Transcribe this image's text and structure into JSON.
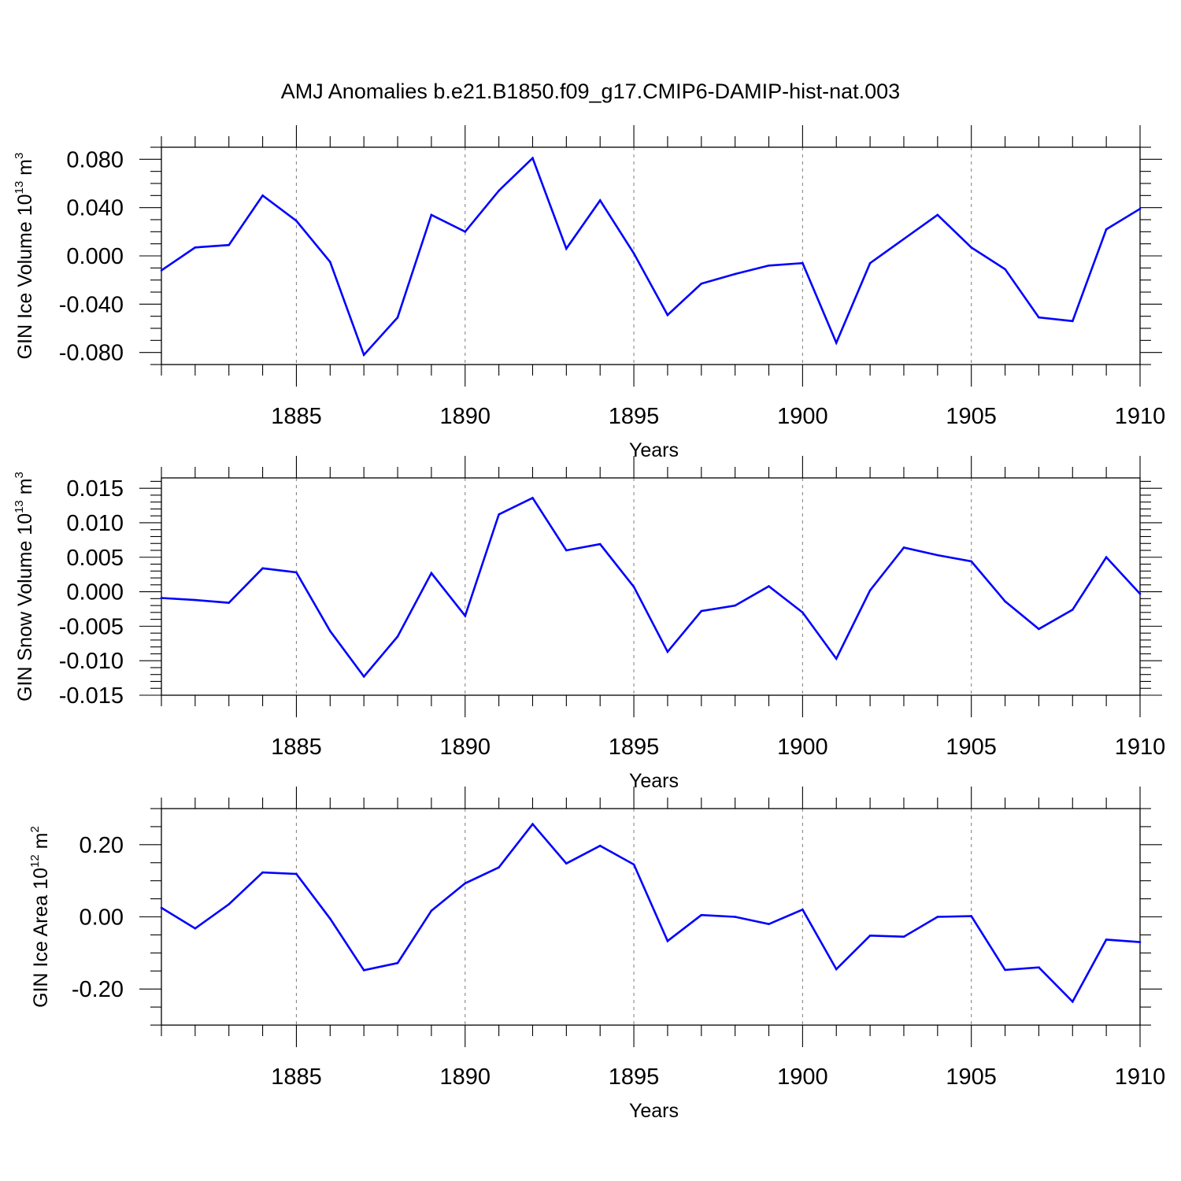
{
  "title": "AMJ Anomalies b.e21.B1850.f09_g17.CMIP6-DAMIP-hist-nat.003",
  "colors": {
    "line": "#0000ff",
    "grid": "#888888",
    "axis": "#000000"
  },
  "chart_data": [
    {
      "type": "line",
      "ylabel": "GIN Ice Volume 10",
      "ylabel_exp": "13",
      "ylabel_unit": " m",
      "ylabel_unit_exp": "3",
      "xlabel": "Years",
      "xlim": [
        1881,
        1910
      ],
      "ylim": [
        -0.09,
        0.09
      ],
      "yticks": [
        -0.08,
        -0.04,
        0.0,
        0.04,
        0.08
      ],
      "ytick_labels": [
        "-0.080",
        "-0.040",
        "0.000",
        "0.040",
        "0.080"
      ],
      "yminor_step": 0.01,
      "xticks": [
        1885,
        1890,
        1895,
        1900,
        1905,
        1910
      ],
      "xtick_labels": [
        "1885",
        "1890",
        "1895",
        "1900",
        "1905",
        "1910"
      ],
      "grid": "vertical dashed at major x ticks",
      "x": [
        1881,
        1882,
        1883,
        1884,
        1885,
        1886,
        1887,
        1888,
        1889,
        1890,
        1891,
        1892,
        1893,
        1894,
        1895,
        1896,
        1897,
        1898,
        1899,
        1900,
        1901,
        1902,
        1903,
        1904,
        1905,
        1906,
        1907,
        1908,
        1909,
        1910
      ],
      "values": [
        -0.012,
        0.007,
        0.009,
        0.05,
        0.029,
        -0.005,
        -0.082,
        -0.051,
        0.034,
        0.02,
        0.054,
        0.081,
        0.006,
        0.046,
        0.002,
        -0.049,
        -0.023,
        -0.015,
        -0.008,
        -0.006,
        -0.072,
        -0.006,
        0.014,
        0.034,
        0.007,
        -0.011,
        -0.051,
        -0.054,
        0.022,
        0.039
      ]
    },
    {
      "type": "line",
      "ylabel": "GIN Snow Volume 10",
      "ylabel_exp": "13",
      "ylabel_unit": " m",
      "ylabel_unit_exp": "3",
      "xlabel": "Years",
      "xlim": [
        1881,
        1910
      ],
      "ylim": [
        -0.015,
        0.0165
      ],
      "yticks": [
        -0.015,
        -0.01,
        -0.005,
        0.0,
        0.005,
        0.01,
        0.015
      ],
      "ytick_labels": [
        "-0.015",
        "-0.010",
        "-0.005",
        "0.000",
        "0.005",
        "0.010",
        "0.015"
      ],
      "yminor_step": 0.001,
      "xticks": [
        1885,
        1890,
        1895,
        1900,
        1905,
        1910
      ],
      "xtick_labels": [
        "1885",
        "1890",
        "1895",
        "1900",
        "1905",
        "1910"
      ],
      "grid": "vertical dashed at major x ticks",
      "x": [
        1881,
        1882,
        1883,
        1884,
        1885,
        1886,
        1887,
        1888,
        1889,
        1890,
        1891,
        1892,
        1893,
        1894,
        1895,
        1896,
        1897,
        1898,
        1899,
        1900,
        1901,
        1902,
        1903,
        1904,
        1905,
        1906,
        1907,
        1908,
        1909,
        1910
      ],
      "values": [
        -0.0009,
        -0.0012,
        -0.0016,
        0.0034,
        0.0028,
        -0.0057,
        -0.0123,
        -0.0065,
        0.0027,
        -0.0035,
        0.0112,
        0.0136,
        0.006,
        0.0069,
        0.0007,
        -0.0087,
        -0.0028,
        -0.002,
        0.0008,
        -0.003,
        -0.0097,
        0.0002,
        0.0064,
        0.0053,
        0.0044,
        -0.0014,
        -0.0054,
        -0.0026,
        0.005,
        -0.0003
      ]
    },
    {
      "type": "line",
      "ylabel": "GIN Ice Area 10",
      "ylabel_exp": "12",
      "ylabel_unit": " m",
      "ylabel_unit_exp": "2",
      "xlabel": "Years",
      "xlim": [
        1881,
        1910
      ],
      "ylim": [
        -0.3,
        0.3
      ],
      "yticks": [
        -0.2,
        0.0,
        0.2
      ],
      "ytick_labels": [
        "-0.20",
        "0.00",
        "0.20"
      ],
      "yminor_step": 0.05,
      "xticks": [
        1885,
        1890,
        1895,
        1900,
        1905,
        1910
      ],
      "xtick_labels": [
        "1885",
        "1890",
        "1895",
        "1900",
        "1905",
        "1910"
      ],
      "grid": "vertical dashed at major x ticks",
      "x": [
        1881,
        1882,
        1883,
        1884,
        1885,
        1886,
        1887,
        1888,
        1889,
        1890,
        1891,
        1892,
        1893,
        1894,
        1895,
        1896,
        1897,
        1898,
        1899,
        1900,
        1901,
        1902,
        1903,
        1904,
        1905,
        1906,
        1907,
        1908,
        1909,
        1910
      ],
      "values": [
        0.025,
        -0.032,
        0.035,
        0.123,
        0.119,
        -0.005,
        -0.148,
        -0.128,
        0.017,
        0.093,
        0.137,
        0.257,
        0.148,
        0.197,
        0.145,
        -0.067,
        0.005,
        0.0,
        -0.02,
        0.02,
        -0.145,
        -0.052,
        -0.055,
        0.0,
        0.002,
        -0.147,
        -0.14,
        -0.235,
        -0.063,
        -0.07
      ]
    }
  ]
}
